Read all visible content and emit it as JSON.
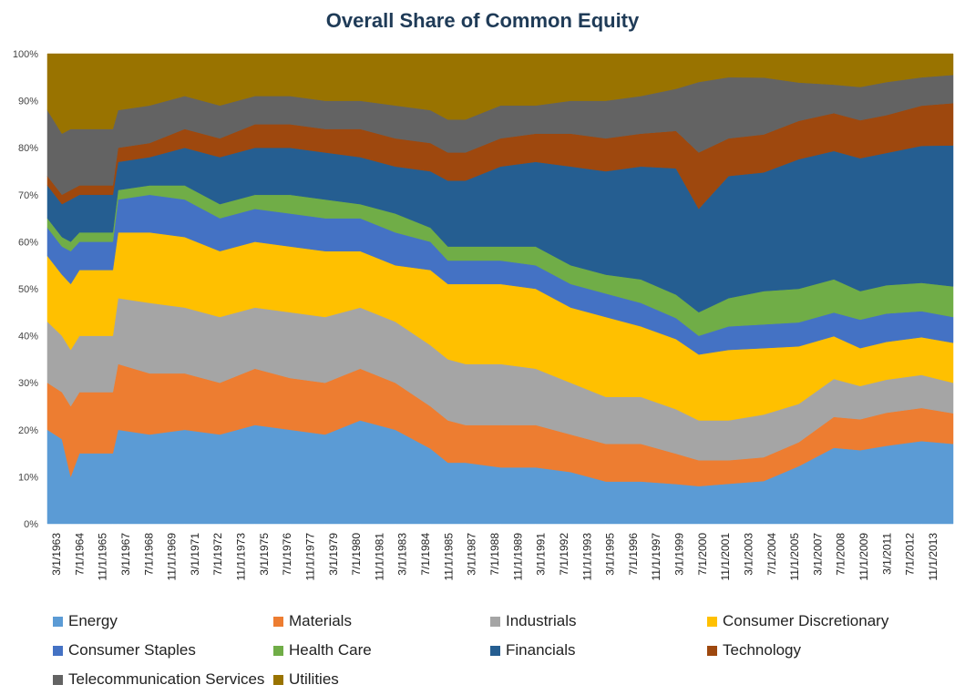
{
  "chart_data": {
    "type": "area",
    "stacked": true,
    "title": "Overall Share of Common Equity",
    "ylim": [
      0,
      1
    ],
    "y_tick_labels": [
      "0%",
      "10%",
      "20%",
      "30%",
      "40%",
      "50%",
      "60%",
      "70%",
      "80%",
      "90%",
      "100%"
    ],
    "x_tick_labels": [
      "3/1/1963",
      "7/1/1964",
      "11/1/1965",
      "3/1/1967",
      "7/1/1968",
      "11/1/1969",
      "3/1/1971",
      "7/1/1972",
      "11/1/1973",
      "3/1/1975",
      "7/1/1976",
      "11/1/1977",
      "3/1/1979",
      "7/1/1980",
      "11/1/1981",
      "3/1/1983",
      "7/1/1984",
      "11/1/1985",
      "3/1/1987",
      "7/1/1988",
      "11/1/1989",
      "3/1/1991",
      "7/1/1992",
      "11/1/1993",
      "3/1/1995",
      "7/1/1996",
      "11/1/1997",
      "3/1/1999",
      "7/1/2000",
      "11/1/2001",
      "3/1/2003",
      "7/1/2004",
      "11/1/2005",
      "3/1/2007",
      "7/1/2008",
      "11/1/2009",
      "3/1/2011",
      "7/1/2012",
      "11/1/2013"
    ],
    "x": [
      1963.17,
      1964.0,
      1964.5,
      1965.0,
      1966.0,
      1966.9,
      1967.2,
      1969.0,
      1971.0,
      1973.0,
      1975.0,
      1977.0,
      1979.0,
      1981.0,
      1983.0,
      1985.0,
      1986.0,
      1987.0,
      1989.0,
      1991.0,
      1993.0,
      1995.0,
      1997.0,
      1999.0,
      2000.3,
      2002.0,
      2004.0,
      2006.0,
      2008.0,
      2009.5,
      2011.0,
      2013.0,
      2014.8
    ],
    "legend_position": "bottom",
    "grid": true,
    "series": [
      {
        "name": "Energy",
        "color": "#5b9bd5",
        "values": [
          0.2,
          0.18,
          0.1,
          0.15,
          0.15,
          0.15,
          0.2,
          0.19,
          0.2,
          0.19,
          0.21,
          0.2,
          0.19,
          0.22,
          0.2,
          0.16,
          0.13,
          0.13,
          0.12,
          0.12,
          0.11,
          0.09,
          0.09,
          0.085,
          0.08,
          0.085,
          0.09,
          0.12,
          0.16,
          0.155,
          0.165,
          0.175,
          0.17
        ]
      },
      {
        "name": "Materials",
        "color": "#ed7d31",
        "values": [
          0.1,
          0.1,
          0.15,
          0.13,
          0.13,
          0.13,
          0.14,
          0.13,
          0.12,
          0.11,
          0.12,
          0.11,
          0.11,
          0.11,
          0.1,
          0.09,
          0.09,
          0.08,
          0.09,
          0.09,
          0.08,
          0.08,
          0.08,
          0.065,
          0.055,
          0.05,
          0.05,
          0.05,
          0.065,
          0.065,
          0.07,
          0.07,
          0.065
        ]
      },
      {
        "name": "Industrials",
        "color": "#a5a5a5",
        "values": [
          0.13,
          0.12,
          0.12,
          0.12,
          0.12,
          0.12,
          0.14,
          0.15,
          0.14,
          0.14,
          0.13,
          0.14,
          0.14,
          0.13,
          0.13,
          0.13,
          0.13,
          0.13,
          0.13,
          0.12,
          0.11,
          0.1,
          0.1,
          0.095,
          0.085,
          0.085,
          0.09,
          0.08,
          0.08,
          0.07,
          0.07,
          0.07,
          0.065
        ]
      },
      {
        "name": "Consumer Discretionary",
        "color": "#ffc000",
        "values": [
          0.14,
          0.13,
          0.14,
          0.14,
          0.14,
          0.14,
          0.14,
          0.15,
          0.15,
          0.14,
          0.14,
          0.14,
          0.14,
          0.12,
          0.12,
          0.16,
          0.16,
          0.17,
          0.17,
          0.17,
          0.16,
          0.17,
          0.15,
          0.15,
          0.14,
          0.15,
          0.14,
          0.12,
          0.09,
          0.08,
          0.08,
          0.08,
          0.085
        ]
      },
      {
        "name": "Consumer Staples",
        "color": "#4472c4",
        "values": [
          0.06,
          0.06,
          0.07,
          0.06,
          0.06,
          0.06,
          0.07,
          0.08,
          0.08,
          0.07,
          0.07,
          0.07,
          0.07,
          0.07,
          0.07,
          0.06,
          0.05,
          0.05,
          0.05,
          0.05,
          0.05,
          0.05,
          0.05,
          0.045,
          0.04,
          0.05,
          0.05,
          0.05,
          0.05,
          0.06,
          0.06,
          0.055,
          0.055
        ]
      },
      {
        "name": "Health Care",
        "color": "#70ad47",
        "values": [
          0.02,
          0.02,
          0.02,
          0.02,
          0.02,
          0.02,
          0.02,
          0.02,
          0.03,
          0.03,
          0.03,
          0.04,
          0.04,
          0.03,
          0.04,
          0.03,
          0.03,
          0.03,
          0.03,
          0.04,
          0.04,
          0.04,
          0.05,
          0.05,
          0.05,
          0.06,
          0.07,
          0.07,
          0.07,
          0.06,
          0.06,
          0.06,
          0.065
        ]
      },
      {
        "name": "Financials",
        "color": "#255e91",
        "values": [
          0.07,
          0.07,
          0.09,
          0.08,
          0.08,
          0.08,
          0.06,
          0.06,
          0.08,
          0.1,
          0.1,
          0.1,
          0.1,
          0.1,
          0.1,
          0.12,
          0.14,
          0.14,
          0.17,
          0.18,
          0.21,
          0.22,
          0.24,
          0.27,
          0.22,
          0.26,
          0.25,
          0.27,
          0.27,
          0.28,
          0.28,
          0.29,
          0.3
        ]
      },
      {
        "name": "Technology",
        "color": "#9e480e",
        "values": [
          0.02,
          0.02,
          0.02,
          0.02,
          0.02,
          0.02,
          0.03,
          0.03,
          0.04,
          0.04,
          0.05,
          0.05,
          0.05,
          0.06,
          0.06,
          0.06,
          0.06,
          0.06,
          0.06,
          0.06,
          0.07,
          0.07,
          0.07,
          0.08,
          0.12,
          0.08,
          0.08,
          0.08,
          0.08,
          0.08,
          0.08,
          0.085,
          0.09
        ]
      },
      {
        "name": "Telecommunication Services",
        "color": "#636363",
        "values": [
          0.14,
          0.13,
          0.13,
          0.12,
          0.12,
          0.12,
          0.08,
          0.08,
          0.07,
          0.07,
          0.06,
          0.06,
          0.06,
          0.06,
          0.07,
          0.07,
          0.07,
          0.07,
          0.07,
          0.06,
          0.07,
          0.08,
          0.08,
          0.09,
          0.15,
          0.13,
          0.12,
          0.08,
          0.06,
          0.07,
          0.07,
          0.06,
          0.06
        ]
      },
      {
        "name": "Utilities",
        "color": "#997300",
        "values": [
          0.12,
          0.17,
          0.16,
          0.16,
          0.16,
          0.16,
          0.12,
          0.11,
          0.09,
          0.11,
          0.09,
          0.09,
          0.1,
          0.1,
          0.11,
          0.12,
          0.14,
          0.14,
          0.11,
          0.11,
          0.1,
          0.1,
          0.09,
          0.075,
          0.06,
          0.05,
          0.05,
          0.06,
          0.065,
          0.07,
          0.06,
          0.05,
          0.045
        ]
      }
    ]
  }
}
